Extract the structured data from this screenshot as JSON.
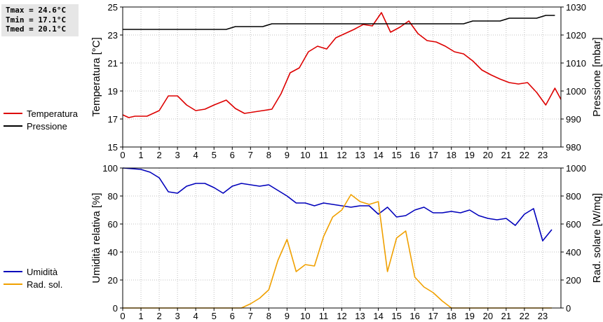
{
  "stats": {
    "tmax": "Tmax = 24.6°C",
    "tmin": "Tmin = 17.1°C",
    "tmed": "Tmed = 20.1°C"
  },
  "chart_data": [
    {
      "type": "line",
      "x_ticks": [
        0,
        1,
        2,
        3,
        4,
        5,
        6,
        7,
        8,
        9,
        10,
        11,
        12,
        13,
        14,
        15,
        16,
        17,
        18,
        19,
        20,
        21,
        22,
        23
      ],
      "x_range": [
        0,
        24
      ],
      "ylabel": "Temperatura [°C]",
      "ylim": [
        15,
        25
      ],
      "y_ticks": [
        15,
        17,
        19,
        21,
        23,
        25
      ],
      "y2label": "Pressione [mbar]",
      "y2lim": [
        980,
        1030
      ],
      "y2_ticks": [
        980,
        990,
        1000,
        1010,
        1020,
        1030
      ],
      "grid": true,
      "legend_placement": "left",
      "series": [
        {
          "name": "Temperatura",
          "axis": "left",
          "color": "#dd0000",
          "points": [
            [
              0,
              17.3
            ],
            [
              0.33,
              17.1
            ],
            [
              0.67,
              17.2
            ],
            [
              1.33,
              17.2
            ],
            [
              2,
              17.6
            ],
            [
              2.5,
              18.65
            ],
            [
              3,
              18.65
            ],
            [
              3.5,
              18.0
            ],
            [
              4,
              17.6
            ],
            [
              4.5,
              17.7
            ],
            [
              5,
              18.0
            ],
            [
              5.67,
              18.35
            ],
            [
              6.17,
              17.75
            ],
            [
              6.67,
              17.4
            ],
            [
              7.17,
              17.5
            ],
            [
              7.67,
              17.6
            ],
            [
              8.17,
              17.7
            ],
            [
              8.67,
              18.8
            ],
            [
              9.17,
              20.3
            ],
            [
              9.67,
              20.65
            ],
            [
              10.17,
              21.8
            ],
            [
              10.67,
              22.2
            ],
            [
              11.17,
              22.0
            ],
            [
              11.67,
              22.8
            ],
            [
              12.17,
              23.1
            ],
            [
              12.67,
              23.4
            ],
            [
              13.17,
              23.75
            ],
            [
              13.67,
              23.65
            ],
            [
              14.17,
              24.6
            ],
            [
              14.67,
              23.2
            ],
            [
              15.17,
              23.55
            ],
            [
              15.67,
              24.0
            ],
            [
              16.17,
              23.1
            ],
            [
              16.67,
              22.6
            ],
            [
              17.17,
              22.5
            ],
            [
              17.67,
              22.2
            ],
            [
              18.17,
              21.8
            ],
            [
              18.67,
              21.65
            ],
            [
              19.17,
              21.15
            ],
            [
              19.67,
              20.5
            ],
            [
              20.17,
              20.15
            ],
            [
              20.67,
              19.85
            ],
            [
              21.17,
              19.6
            ],
            [
              21.67,
              19.5
            ],
            [
              22.17,
              19.6
            ],
            [
              22.67,
              18.9
            ],
            [
              23.17,
              18.0
            ],
            [
              23.67,
              19.2
            ],
            [
              24.17,
              18.4
            ]
          ]
        },
        {
          "name": "Pressione",
          "axis": "right",
          "color": "#000000",
          "points": [
            [
              0,
              1022
            ],
            [
              5.67,
              1022
            ],
            [
              6.17,
              1023
            ],
            [
              7.67,
              1023
            ],
            [
              8.17,
              1024
            ],
            [
              13.17,
              1024
            ],
            [
              13.67,
              1024
            ],
            [
              18.67,
              1024
            ],
            [
              19.17,
              1025
            ],
            [
              20.67,
              1025
            ],
            [
              21.17,
              1026
            ],
            [
              22.67,
              1026
            ],
            [
              23.17,
              1027
            ],
            [
              23.67,
              1027
            ]
          ]
        }
      ]
    },
    {
      "type": "line",
      "x_ticks": [
        0,
        1,
        2,
        3,
        4,
        5,
        6,
        7,
        8,
        9,
        10,
        11,
        12,
        13,
        14,
        15,
        16,
        17,
        18,
        19,
        20,
        21,
        22,
        23
      ],
      "x_range": [
        0,
        24
      ],
      "ylabel": "Umidità relativa [%]",
      "ylim": [
        0,
        100
      ],
      "y_ticks": [
        0,
        20,
        40,
        60,
        80,
        100
      ],
      "y2label": "Rad. solare [W/mq]",
      "y2lim": [
        0,
        1000
      ],
      "y2_ticks": [
        0,
        200,
        400,
        600,
        800,
        1000
      ],
      "grid": true,
      "legend_placement": "left",
      "series": [
        {
          "name": "Umidità",
          "axis": "left",
          "color": "#0000bb",
          "points": [
            [
              0,
              100
            ],
            [
              1,
              99
            ],
            [
              1.5,
              97
            ],
            [
              2,
              93
            ],
            [
              2.5,
              83
            ],
            [
              3,
              82
            ],
            [
              3.5,
              87
            ],
            [
              4,
              89
            ],
            [
              4.5,
              89
            ],
            [
              5,
              86
            ],
            [
              5.5,
              82
            ],
            [
              6,
              87
            ],
            [
              6.5,
              89
            ],
            [
              7,
              88
            ],
            [
              7.5,
              87
            ],
            [
              8,
              88
            ],
            [
              8.5,
              84
            ],
            [
              9,
              80
            ],
            [
              9.5,
              75
            ],
            [
              10,
              75
            ],
            [
              10.5,
              73
            ],
            [
              11,
              75
            ],
            [
              11.5,
              74
            ],
            [
              12,
              73
            ],
            [
              12.5,
              72
            ],
            [
              13,
              73
            ],
            [
              13.5,
              73
            ],
            [
              14,
              67
            ],
            [
              14.5,
              72
            ],
            [
              15,
              65
            ],
            [
              15.5,
              66
            ],
            [
              16,
              70
            ],
            [
              16.5,
              72
            ],
            [
              17,
              68
            ],
            [
              17.5,
              68
            ],
            [
              18,
              69
            ],
            [
              18.5,
              68
            ],
            [
              19,
              70
            ],
            [
              19.5,
              66
            ],
            [
              20,
              64
            ],
            [
              20.5,
              63
            ],
            [
              21,
              64
            ],
            [
              21.5,
              59
            ],
            [
              22,
              67
            ],
            [
              22.5,
              71
            ],
            [
              23,
              48
            ],
            [
              23.5,
              56
            ]
          ]
        },
        {
          "name": "Rad. sol.",
          "axis": "right",
          "color": "#f0a000",
          "points": [
            [
              0,
              0
            ],
            [
              6.5,
              0
            ],
            [
              7,
              30
            ],
            [
              7.5,
              70
            ],
            [
              8,
              130
            ],
            [
              8.5,
              340
            ],
            [
              9,
              490
            ],
            [
              9.5,
              260
            ],
            [
              10,
              310
            ],
            [
              10.5,
              300
            ],
            [
              11,
              510
            ],
            [
              11.5,
              650
            ],
            [
              12,
              700
            ],
            [
              12.5,
              810
            ],
            [
              13,
              760
            ],
            [
              13.5,
              740
            ],
            [
              14,
              760
            ],
            [
              14.5,
              260
            ],
            [
              15,
              500
            ],
            [
              15.5,
              550
            ],
            [
              16,
              220
            ],
            [
              16.5,
              150
            ],
            [
              17,
              110
            ],
            [
              17.5,
              50
            ],
            [
              18,
              0
            ],
            [
              23.5,
              0
            ]
          ]
        }
      ]
    }
  ]
}
